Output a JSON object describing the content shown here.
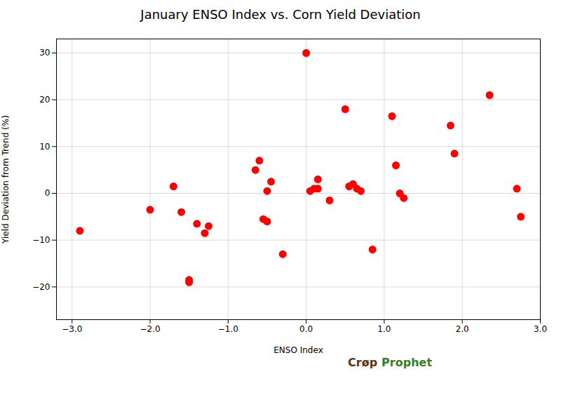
{
  "chart_data": {
    "type": "scatter",
    "title": "January ENSO Index vs. Corn Yield Deviation",
    "xlabel": "ENSO Index",
    "ylabel": "Yield Deviation from Trend (%)",
    "x": [
      -2.9,
      -2.0,
      -1.7,
      -1.6,
      -1.5,
      -1.5,
      -1.4,
      -1.3,
      -1.25,
      -0.65,
      -0.6,
      -0.55,
      -0.5,
      -0.5,
      -0.45,
      -0.3,
      0.0,
      0.05,
      0.1,
      0.15,
      0.15,
      0.3,
      0.5,
      0.55,
      0.6,
      0.65,
      0.7,
      0.85,
      1.1,
      1.15,
      1.2,
      1.25,
      1.85,
      1.9,
      2.35,
      2.7,
      2.75
    ],
    "values": [
      -8,
      -3.5,
      1.5,
      -4,
      -18.5,
      -19,
      -6.5,
      -8.5,
      -7.0,
      5,
      7,
      -5.5,
      0.5,
      -6,
      2.5,
      -13,
      30,
      0.5,
      1,
      3,
      1,
      -1.5,
      18,
      1.5,
      2,
      1,
      0.5,
      -12,
      16.5,
      6,
      0,
      -1,
      14.5,
      8.5,
      21,
      1,
      -5
    ],
    "color": "#FF0000",
    "xlim": [
      -3.2,
      3
    ],
    "ylim": [
      -27,
      33
    ],
    "xticks": [
      -3,
      -2,
      -1,
      0,
      1,
      2,
      3
    ],
    "yticks": [
      -20,
      -10,
      0,
      10,
      20,
      30
    ],
    "grid": true,
    "annotations": [
      {
        "text": "Crøp",
        "color": "#5C3317"
      },
      {
        "text": "Prophet",
        "color": "#3A7D1E"
      }
    ]
  }
}
